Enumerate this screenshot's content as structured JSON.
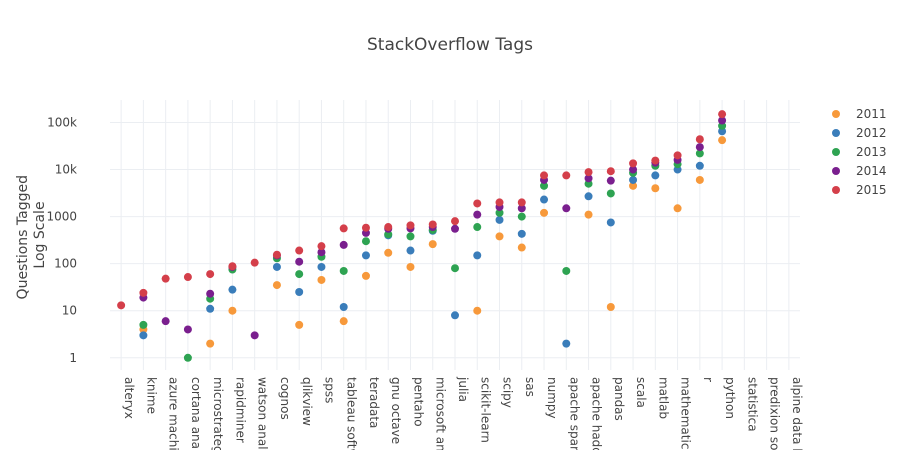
{
  "chart_data": {
    "type": "scatter",
    "title": "StackOverflow Tags",
    "ylabel_lines": [
      "Questions Tagged",
      "Log Scale"
    ],
    "xlabel": "",
    "y_scale": "log",
    "ylim": [
      0.55,
      300000
    ],
    "grid": true,
    "legend_position": "top-right",
    "categories": [
      "alteryx",
      "knime",
      "azure machine learning",
      "cortana analytics",
      "microstrategy",
      "rapidminer",
      "watson analytics",
      "cognos",
      "qlikview",
      "spss",
      "tableau software",
      "teradata",
      "gnu octave",
      "pentaho",
      "microsoft analytics",
      "julia",
      "scikit-learn",
      "scipy",
      "sas",
      "numpy",
      "apache spark",
      "apache hadoop",
      "pandas",
      "scala",
      "matlab",
      "mathematica",
      "r",
      "python",
      "statistica",
      "predixion software",
      "alpine data labs"
    ],
    "category_labels": [
      "alteryx",
      "knime",
      "azure machir",
      "cortana analy",
      "microstrateg",
      "rapidminer",
      "watson analy",
      "cognos",
      "qlikview",
      "spss",
      "tableau softw",
      "teradata",
      "gnu octave",
      "pentaho",
      "microsoft an",
      "julia",
      "scikit-learn",
      "scipy",
      "sas",
      "numpy",
      "apache spark",
      "apache hado",
      "pandas",
      "scala",
      "matlab",
      "mathematica",
      "r",
      "python",
      "statistica",
      "predixion sof",
      "alpine data la"
    ],
    "y_ticks": [
      {
        "value": 1,
        "label": "1"
      },
      {
        "value": 10,
        "label": "10"
      },
      {
        "value": 100,
        "label": "100"
      },
      {
        "value": 1000,
        "label": "1000"
      },
      {
        "value": 10000,
        "label": "10k"
      },
      {
        "value": 100000,
        "label": "100k"
      }
    ],
    "series": [
      {
        "name": "2011",
        "color": "#f7993b",
        "values": [
          null,
          4,
          null,
          null,
          2,
          10,
          null,
          35,
          5,
          45,
          6,
          55,
          170,
          85,
          260,
          null,
          10,
          380,
          220,
          1200,
          null,
          1100,
          12,
          4500,
          4000,
          1500,
          6000,
          42000,
          null,
          null,
          null
        ]
      },
      {
        "name": "2012",
        "color": "#3a7dba",
        "values": [
          null,
          3,
          null,
          null,
          11,
          28,
          null,
          85,
          25,
          85,
          12,
          150,
          400,
          190,
          500,
          8,
          150,
          850,
          430,
          2300,
          2,
          2700,
          750,
          6000,
          7500,
          10000,
          12000,
          65000,
          null,
          null,
          null
        ]
      },
      {
        "name": "2013",
        "color": "#2ea352",
        "values": [
          null,
          5,
          null,
          1,
          18,
          75,
          null,
          130,
          60,
          140,
          70,
          300,
          420,
          380,
          520,
          80,
          600,
          1200,
          1000,
          4500,
          70,
          5000,
          3100,
          8500,
          12000,
          13000,
          22000,
          85000,
          null,
          null,
          null
        ]
      },
      {
        "name": "2014",
        "color": "#7a1f8e",
        "values": [
          null,
          19,
          6,
          4,
          23,
          85,
          3,
          150,
          110,
          175,
          250,
          450,
          550,
          560,
          600,
          550,
          1100,
          1600,
          1500,
          6000,
          1500,
          6500,
          5800,
          10000,
          14000,
          16000,
          30000,
          110000,
          null,
          null,
          null
        ]
      },
      {
        "name": "2015",
        "color": "#d43f4a",
        "values": [
          13,
          24,
          48,
          52,
          60,
          88,
          105,
          155,
          190,
          235,
          560,
          580,
          600,
          650,
          680,
          800,
          1900,
          2000,
          2000,
          7500,
          7500,
          8800,
          9200,
          13500,
          15500,
          20000,
          44000,
          150000,
          null,
          null,
          null
        ]
      }
    ]
  }
}
